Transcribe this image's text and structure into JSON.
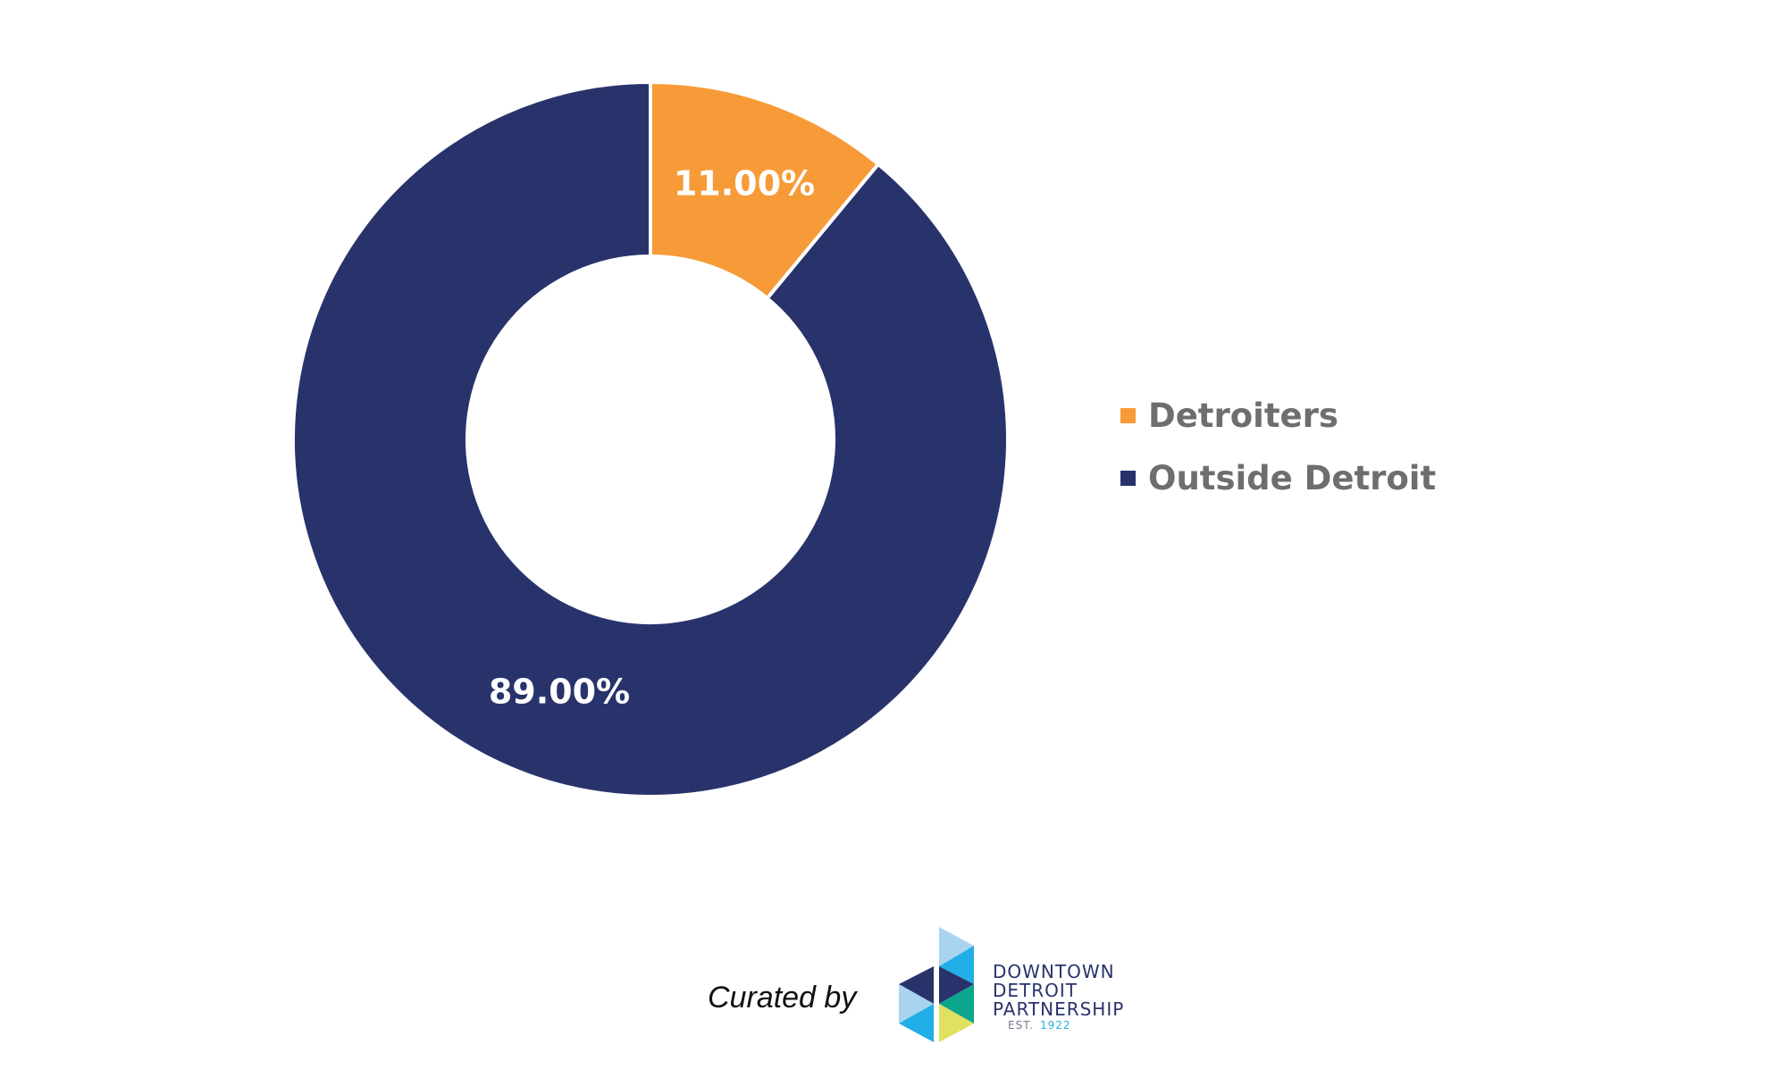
{
  "chart_data": {
    "type": "pie",
    "donut": true,
    "categories": [
      "Detroiters",
      "Outside Detroit"
    ],
    "values": [
      11.0,
      89.0
    ],
    "data_labels": [
      "11.00%",
      "89.00%"
    ],
    "colors": [
      "#F79B38",
      "#29336B"
    ],
    "legend_placement": "right"
  },
  "footer": {
    "curated_by": "Curated by",
    "logo": {
      "line1": "DOWNTOWN",
      "line2": "DETROIT",
      "line3": "PARTNERSHIP",
      "est": "EST.",
      "year": "1922"
    }
  }
}
